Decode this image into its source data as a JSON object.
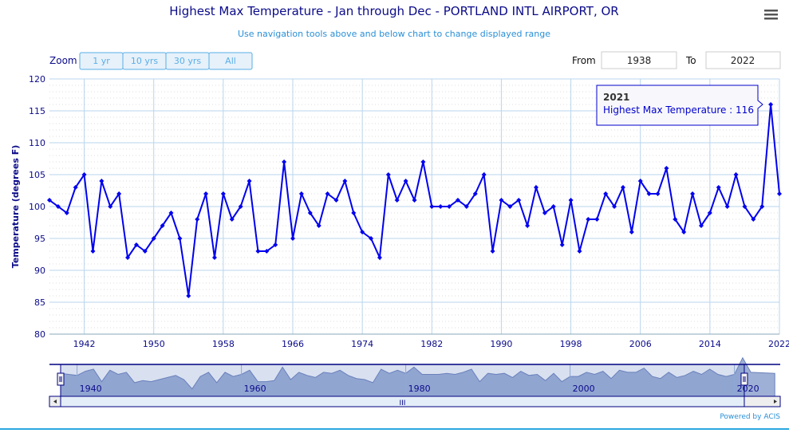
{
  "chart_data": {
    "type": "line",
    "title": "Highest Max Temperature - Jan through Dec - PORTLAND INTL AIRPORT, OR",
    "subtitle": "Use navigation tools above and below chart to change displayed range",
    "ylabel": "Temperature (degrees F)",
    "xlabel": "",
    "ylim": [
      80,
      120
    ],
    "yticks": [
      "80",
      "85",
      "90",
      "95",
      "100",
      "105",
      "110",
      "115",
      "120"
    ],
    "xlim": [
      1938,
      2022
    ],
    "xticks": [
      "1942",
      "1950",
      "1958",
      "1966",
      "1974",
      "1982",
      "1990",
      "1998",
      "2006",
      "2014",
      "2022"
    ],
    "grid": true,
    "series": [
      {
        "name": "Highest Max Temperature",
        "color": "#0000ee",
        "x_start": 1938,
        "values": [
          101,
          100,
          99,
          103,
          105,
          93,
          104,
          100,
          102,
          92,
          94,
          93,
          95,
          97,
          99,
          95,
          86,
          98,
          102,
          92,
          102,
          98,
          100,
          104,
          93,
          93,
          94,
          107,
          95,
          102,
          99,
          97,
          102,
          101,
          104,
          99,
          96,
          95,
          92,
          105,
          101,
          104,
          101,
          107,
          100,
          100,
          100,
          101,
          100,
          102,
          105,
          93,
          101,
          100,
          101,
          97,
          103,
          99,
          100,
          94,
          101,
          93,
          98,
          98,
          102,
          100,
          103,
          96,
          104,
          102,
          102,
          106,
          98,
          96,
          102,
          97,
          99,
          103,
          100,
          105,
          100,
          98,
          100,
          116,
          102
        ]
      }
    ],
    "tooltip": {
      "year": "2021",
      "label": "Highest Max Temperature : 116"
    },
    "navigator": {
      "ticks": [
        "1940",
        "1960",
        "1980",
        "2000",
        "2020"
      ]
    }
  },
  "menu_icon": "hamburger-icon",
  "zoom": {
    "label": "Zoom",
    "buttons": [
      "1 yr",
      "10 yrs",
      "30 yrs",
      "All"
    ]
  },
  "range": {
    "from_label": "From",
    "from_value": "1938",
    "to_label": "To",
    "to_value": "2022"
  },
  "credits": "Powered by ACIS"
}
